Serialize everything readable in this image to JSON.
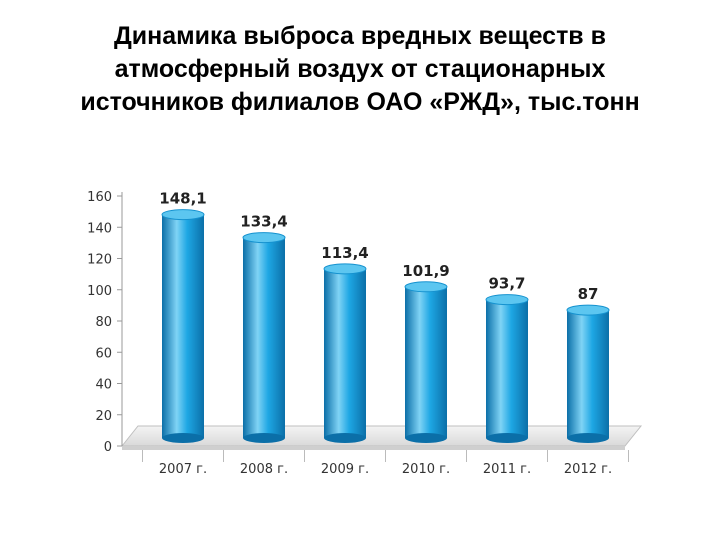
{
  "title_lines": [
    "Динамика выброса вредных веществ в",
    "атмосферный воздух от стационарных",
    "источников филиалов ОАО «РЖД», тыс.тонн"
  ],
  "chart_data": {
    "type": "bar",
    "title": "Динамика выброса вредных веществ в атмосферный воздух от стационарных источников филиалов ОАО «РЖД», тыс.тонн",
    "categories": [
      "2007 г.",
      "2008 г.",
      "2009 г.",
      "2010 г.",
      "2011 г.",
      "2012 г."
    ],
    "values": [
      148.1,
      133.4,
      113.4,
      101.9,
      93.7,
      87
    ],
    "data_labels": [
      "148,1",
      "133,4",
      "113,4",
      "101,9",
      "93,7",
      "87"
    ],
    "yticks": [
      0,
      20,
      40,
      60,
      80,
      100,
      120,
      140,
      160
    ],
    "ylim": [
      0,
      160
    ],
    "xlabel": "",
    "ylabel": "",
    "grid": false,
    "legend": "none",
    "bar_color": "#1ea7e4",
    "bar_shade_color": "#0b6fa8",
    "bar_highlight_color": "#7fd3f5"
  }
}
